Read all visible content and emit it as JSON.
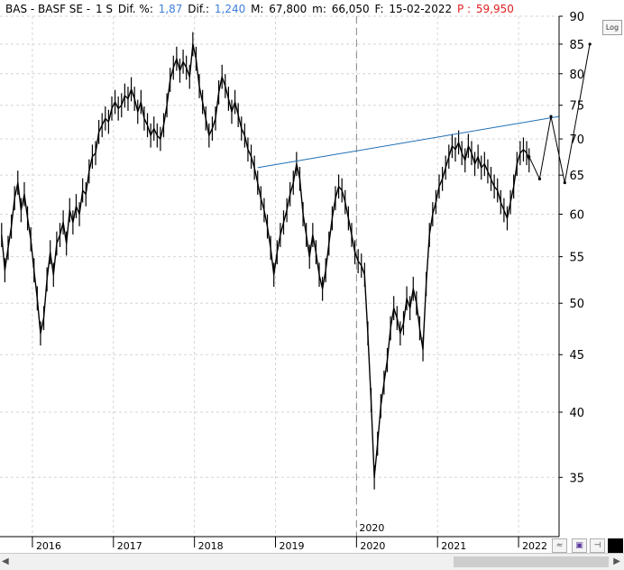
{
  "header": {
    "symbol": "BAS - BASF SE -",
    "timeframe": "1 S",
    "dif_pct_label": "Dif. %:",
    "dif_pct_value": "1,87",
    "dif_label": "Dif.:",
    "dif_value": "1,240",
    "max_label": "M:",
    "max_value": "67,800",
    "min_label": "m:",
    "min_value": "66,050",
    "date_label": "F:",
    "date_value": "15-02-2022",
    "price_label": "P :",
    "price_value": "59,950",
    "blue_color": "#3d7fd8",
    "red_color": "#e02020"
  },
  "log_button": "Log",
  "vertical_marker_label": "2020",
  "toolbar": {
    "wave_icon": "wave-icon",
    "save_icon": "save-icon",
    "pin_icon": "pin-icon",
    "color_icon": "color-swatch-icon"
  },
  "chart_data": {
    "type": "line",
    "scale": "log",
    "ylim": [
      31,
      90
    ],
    "xlim": [
      2015.6,
      2022.5
    ],
    "y_ticks": [
      35,
      40,
      45,
      50,
      55,
      60,
      65,
      70,
      75,
      80,
      85,
      90
    ],
    "x_ticks": [
      "2016",
      "2017",
      "2018",
      "2019",
      "2020",
      "2021",
      "2022"
    ],
    "x_tick_values": [
      2016,
      2017,
      2018,
      2019,
      2020,
      2021,
      2022
    ],
    "grid": true,
    "series": [
      {
        "kind": "price",
        "color": "#000000",
        "points": [
          [
            2015.62,
            57.5
          ],
          [
            2015.66,
            53.5
          ],
          [
            2015.7,
            56.0
          ],
          [
            2015.74,
            58.5
          ],
          [
            2015.78,
            62.0
          ],
          [
            2015.82,
            64.0
          ],
          [
            2015.86,
            60.5
          ],
          [
            2015.9,
            62.5
          ],
          [
            2015.94,
            59.5
          ],
          [
            2015.98,
            57.0
          ],
          [
            2016.02,
            53.5
          ],
          [
            2016.06,
            50.5
          ],
          [
            2016.1,
            47.0
          ],
          [
            2016.14,
            48.5
          ],
          [
            2016.18,
            52.5
          ],
          [
            2016.22,
            55.5
          ],
          [
            2016.26,
            53.0
          ],
          [
            2016.3,
            56.5
          ],
          [
            2016.34,
            57.5
          ],
          [
            2016.38,
            59.0
          ],
          [
            2016.42,
            56.5
          ],
          [
            2016.46,
            60.5
          ],
          [
            2016.5,
            59.0
          ],
          [
            2016.54,
            61.0
          ],
          [
            2016.58,
            60.0
          ],
          [
            2016.62,
            63.0
          ],
          [
            2016.66,
            62.5
          ],
          [
            2016.7,
            65.5
          ],
          [
            2016.74,
            67.5
          ],
          [
            2016.78,
            68.0
          ],
          [
            2016.82,
            71.0
          ],
          [
            2016.86,
            72.0
          ],
          [
            2016.9,
            73.0
          ],
          [
            2016.94,
            72.5
          ],
          [
            2016.98,
            74.5
          ],
          [
            2017.02,
            75.5
          ],
          [
            2017.06,
            74.5
          ],
          [
            2017.1,
            75.0
          ],
          [
            2017.14,
            76.5
          ],
          [
            2017.18,
            76.0
          ],
          [
            2017.22,
            77.5
          ],
          [
            2017.26,
            76.0
          ],
          [
            2017.3,
            74.0
          ],
          [
            2017.34,
            75.5
          ],
          [
            2017.38,
            73.0
          ],
          [
            2017.42,
            72.0
          ],
          [
            2017.46,
            70.5
          ],
          [
            2017.5,
            71.5
          ],
          [
            2017.54,
            70.5
          ],
          [
            2017.58,
            70.0
          ],
          [
            2017.62,
            72.0
          ],
          [
            2017.66,
            75.0
          ],
          [
            2017.7,
            79.0
          ],
          [
            2017.74,
            81.0
          ],
          [
            2017.78,
            82.5
          ],
          [
            2017.82,
            80.5
          ],
          [
            2017.86,
            82.0
          ],
          [
            2017.9,
            81.0
          ],
          [
            2017.94,
            79.5
          ],
          [
            2017.98,
            85.0
          ],
          [
            2018.02,
            82.5
          ],
          [
            2018.06,
            78.0
          ],
          [
            2018.1,
            75.5
          ],
          [
            2018.14,
            73.0
          ],
          [
            2018.18,
            70.5
          ],
          [
            2018.22,
            71.5
          ],
          [
            2018.26,
            73.0
          ],
          [
            2018.3,
            77.0
          ],
          [
            2018.34,
            79.5
          ],
          [
            2018.38,
            78.0
          ],
          [
            2018.42,
            76.0
          ],
          [
            2018.46,
            74.0
          ],
          [
            2018.5,
            75.5
          ],
          [
            2018.54,
            73.5
          ],
          [
            2018.58,
            71.5
          ],
          [
            2018.62,
            70.5
          ],
          [
            2018.66,
            68.5
          ],
          [
            2018.7,
            67.5
          ],
          [
            2018.74,
            66.0
          ],
          [
            2018.78,
            64.0
          ],
          [
            2018.82,
            62.0
          ],
          [
            2018.86,
            60.5
          ],
          [
            2018.9,
            58.5
          ],
          [
            2018.94,
            56.0
          ],
          [
            2018.98,
            53.0
          ],
          [
            2019.02,
            55.5
          ],
          [
            2019.06,
            57.5
          ],
          [
            2019.1,
            59.0
          ],
          [
            2019.14,
            60.5
          ],
          [
            2019.18,
            62.5
          ],
          [
            2019.22,
            64.0
          ],
          [
            2019.26,
            66.5
          ],
          [
            2019.3,
            64.5
          ],
          [
            2019.34,
            60.0
          ],
          [
            2019.38,
            57.5
          ],
          [
            2019.42,
            55.0
          ],
          [
            2019.46,
            57.5
          ],
          [
            2019.5,
            55.5
          ],
          [
            2019.54,
            53.0
          ],
          [
            2019.58,
            51.5
          ],
          [
            2019.62,
            53.5
          ],
          [
            2019.66,
            56.5
          ],
          [
            2019.7,
            59.5
          ],
          [
            2019.74,
            62.0
          ],
          [
            2019.78,
            63.5
          ],
          [
            2019.82,
            63.0
          ],
          [
            2019.86,
            61.5
          ],
          [
            2019.9,
            59.5
          ],
          [
            2019.94,
            57.5
          ],
          [
            2019.98,
            55.5
          ],
          [
            2020.02,
            54.5
          ],
          [
            2020.06,
            54.0
          ],
          [
            2020.1,
            53.0
          ],
          [
            2020.14,
            47.0
          ],
          [
            2020.18,
            41.0
          ],
          [
            2020.22,
            35.0
          ],
          [
            2020.26,
            37.5
          ],
          [
            2020.3,
            40.5
          ],
          [
            2020.34,
            42.5
          ],
          [
            2020.38,
            44.5
          ],
          [
            2020.42,
            47.5
          ],
          [
            2020.46,
            49.5
          ],
          [
            2020.5,
            48.5
          ],
          [
            2020.54,
            47.0
          ],
          [
            2020.58,
            48.0
          ],
          [
            2020.62,
            50.5
          ],
          [
            2020.66,
            49.5
          ],
          [
            2020.7,
            51.5
          ],
          [
            2020.74,
            50.0
          ],
          [
            2020.78,
            47.5
          ],
          [
            2020.82,
            45.5
          ],
          [
            2020.86,
            52.0
          ],
          [
            2020.9,
            57.5
          ],
          [
            2020.94,
            60.0
          ],
          [
            2020.98,
            61.5
          ],
          [
            2021.02,
            63.5
          ],
          [
            2021.06,
            64.5
          ],
          [
            2021.1,
            66.0
          ],
          [
            2021.14,
            67.5
          ],
          [
            2021.18,
            69.0
          ],
          [
            2021.22,
            68.5
          ],
          [
            2021.26,
            69.5
          ],
          [
            2021.3,
            68.0
          ],
          [
            2021.34,
            67.0
          ],
          [
            2021.38,
            69.0
          ],
          [
            2021.42,
            68.0
          ],
          [
            2021.46,
            66.5
          ],
          [
            2021.5,
            67.5
          ],
          [
            2021.54,
            66.0
          ],
          [
            2021.58,
            66.5
          ],
          [
            2021.62,
            65.5
          ],
          [
            2021.66,
            64.5
          ],
          [
            2021.7,
            63.5
          ],
          [
            2021.74,
            63.0
          ],
          [
            2021.78,
            61.5
          ],
          [
            2021.82,
            60.5
          ],
          [
            2021.86,
            59.5
          ],
          [
            2021.9,
            61.5
          ],
          [
            2021.94,
            63.5
          ],
          [
            2021.98,
            66.5
          ],
          [
            2022.02,
            68.0
          ],
          [
            2022.06,
            68.5
          ],
          [
            2022.1,
            68.0
          ],
          [
            2022.13,
            67.0
          ]
        ]
      },
      {
        "kind": "trendline",
        "color": "#1f6fb5",
        "points": [
          [
            2018.78,
            66.0
          ],
          [
            2022.5,
            73.3
          ]
        ]
      },
      {
        "kind": "projection",
        "color": "#000000",
        "points": [
          [
            2022.13,
            67.5
          ],
          [
            2022.26,
            64.5
          ],
          [
            2022.4,
            73.3
          ],
          [
            2022.57,
            64.0
          ],
          [
            2022.88,
            85.0
          ]
        ]
      }
    ],
    "vertical_marker": {
      "x": 2020.0,
      "label": "2020"
    }
  }
}
